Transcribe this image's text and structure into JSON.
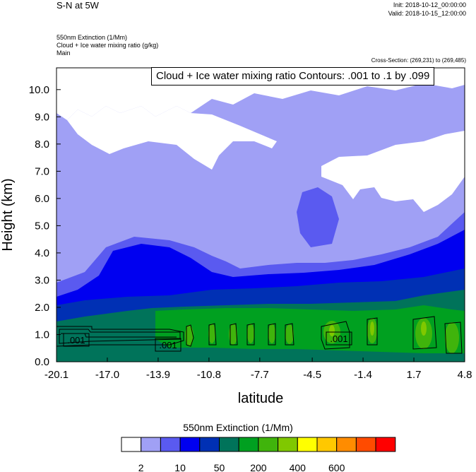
{
  "header": {
    "title": "S-N at 5W",
    "init": "Init: 2018-10-12_00:00:00",
    "valid": "Valid: 2018-10-15_12:00:00",
    "field1": "550nm Extinction   (1/Mm)",
    "field2": "Cloud + Ice water mixing ratio   (g/kg)",
    "field3": "Main",
    "cross_section": "Cross-Section: (269,231) to (269,485)",
    "contour_info": "Cloud + Ice water mixing ratio Contours: .001 to .1 by .099"
  },
  "chart_data": {
    "type": "heatmap",
    "xlabel": "latitude",
    "ylabel": "Height (km)",
    "xticks": [
      "-20.1",
      "-17.0",
      "-13.9",
      "-10.8",
      "-7.7",
      "-4.5",
      "-1.4",
      "1.7",
      "4.8"
    ],
    "xlim": [
      -20.1,
      4.8
    ],
    "yticks": [
      "0.0",
      "1.0",
      "2.0",
      "3.0",
      "4.0",
      "5.0",
      "6.0",
      "7.0",
      "8.0",
      "9.0",
      "10.0"
    ],
    "ylim": [
      0.0,
      10.8
    ],
    "contour_labels": [
      ".001",
      ".001",
      ".001"
    ],
    "colorbar": {
      "title": "550nm Extinction  (1/Mm)",
      "colors": [
        "#ffffff",
        "#a0a0f5",
        "#5a5af0",
        "#0000f0",
        "#0030b4",
        "#00735a",
        "#00a020",
        "#40b40c",
        "#80c800",
        "#ffff00",
        "#ffc800",
        "#ff8c00",
        "#ff4b00",
        "#ff0000"
      ],
      "labels": [
        "2",
        "10",
        "50",
        "200",
        "400",
        "600"
      ]
    }
  }
}
